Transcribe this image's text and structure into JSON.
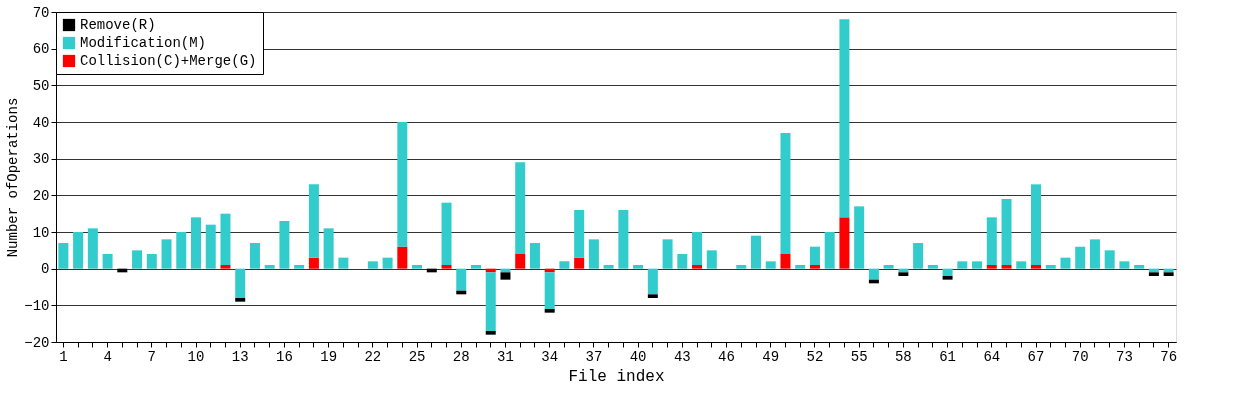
{
  "chart_data": {
    "type": "bar",
    "stacked": true,
    "xlabel": "File index",
    "ylabel": "Number ofOperations",
    "categories": [
      "1",
      null,
      null,
      "4",
      null,
      null,
      "7",
      null,
      null,
      "10",
      null,
      null,
      "13",
      null,
      null,
      "16",
      null,
      null,
      "19",
      null,
      null,
      "22",
      null,
      null,
      "25",
      null,
      null,
      "28",
      null,
      null,
      "31",
      null,
      null,
      "34",
      null,
      null,
      "37",
      null,
      null,
      "40",
      null,
      null,
      "43",
      null,
      null,
      "46",
      null,
      null,
      "49",
      null,
      null,
      "52",
      null,
      null,
      "55",
      null,
      null,
      "58",
      null,
      null,
      "61",
      null,
      null,
      "64",
      null,
      null,
      "67",
      null,
      null,
      "70",
      null,
      null,
      "73",
      null,
      null,
      "76"
    ],
    "series": [
      {
        "name": "Collision(C)+Merge(G)",
        "color": "#ff0000",
        "values": [
          null,
          null,
          null,
          null,
          null,
          null,
          null,
          null,
          null,
          null,
          null,
          1,
          null,
          null,
          null,
          null,
          null,
          3,
          null,
          null,
          null,
          null,
          null,
          6,
          null,
          null,
          1,
          null,
          null,
          -1,
          null,
          4,
          null,
          -1,
          null,
          3,
          null,
          null,
          null,
          null,
          null,
          null,
          null,
          1,
          null,
          null,
          null,
          null,
          null,
          4,
          null,
          1,
          null,
          14,
          null,
          null,
          null,
          null,
          null,
          null,
          null,
          null,
          null,
          1,
          1,
          null,
          1,
          null,
          null,
          null,
          null,
          null,
          null,
          null,
          null,
          null
        ]
      },
      {
        "name": "Modification(M)",
        "color": "#33cccc",
        "values": [
          7,
          10,
          11,
          4,
          null,
          5,
          4,
          8,
          10,
          14,
          12,
          14,
          -8,
          7,
          1,
          13,
          1,
          20,
          11,
          3,
          null,
          2,
          3,
          34,
          1,
          null,
          17,
          -6,
          1,
          -16,
          -1,
          25,
          7,
          -10,
          2,
          13,
          8,
          1,
          16,
          1,
          -7,
          8,
          4,
          9,
          5,
          null,
          1,
          9,
          2,
          33,
          1,
          5,
          10,
          54,
          17,
          -3,
          1,
          -1,
          7,
          1,
          -2,
          2,
          2,
          13,
          18,
          2,
          22,
          1,
          3,
          6,
          8,
          5,
          2,
          1,
          -1,
          -1
        ]
      },
      {
        "name": "Remove(R)",
        "color": "#000000",
        "values": [
          null,
          null,
          null,
          null,
          -1,
          null,
          null,
          null,
          null,
          null,
          null,
          null,
          -1,
          null,
          null,
          null,
          null,
          null,
          null,
          null,
          null,
          null,
          null,
          null,
          null,
          -1,
          null,
          -1,
          null,
          -1,
          -2,
          null,
          null,
          -1,
          null,
          null,
          null,
          null,
          null,
          null,
          -1,
          null,
          null,
          null,
          null,
          null,
          null,
          null,
          null,
          null,
          null,
          null,
          null,
          null,
          null,
          -1,
          null,
          -1,
          null,
          null,
          -1,
          null,
          null,
          null,
          null,
          null,
          null,
          null,
          null,
          null,
          null,
          null,
          null,
          null,
          -1,
          -1
        ]
      }
    ],
    "ylim": [
      -20,
      70
    ],
    "yticks": [
      -20,
      -10,
      0,
      10,
      20,
      30,
      40,
      50,
      60,
      70
    ],
    "grid": "y",
    "legend": "top left"
  }
}
